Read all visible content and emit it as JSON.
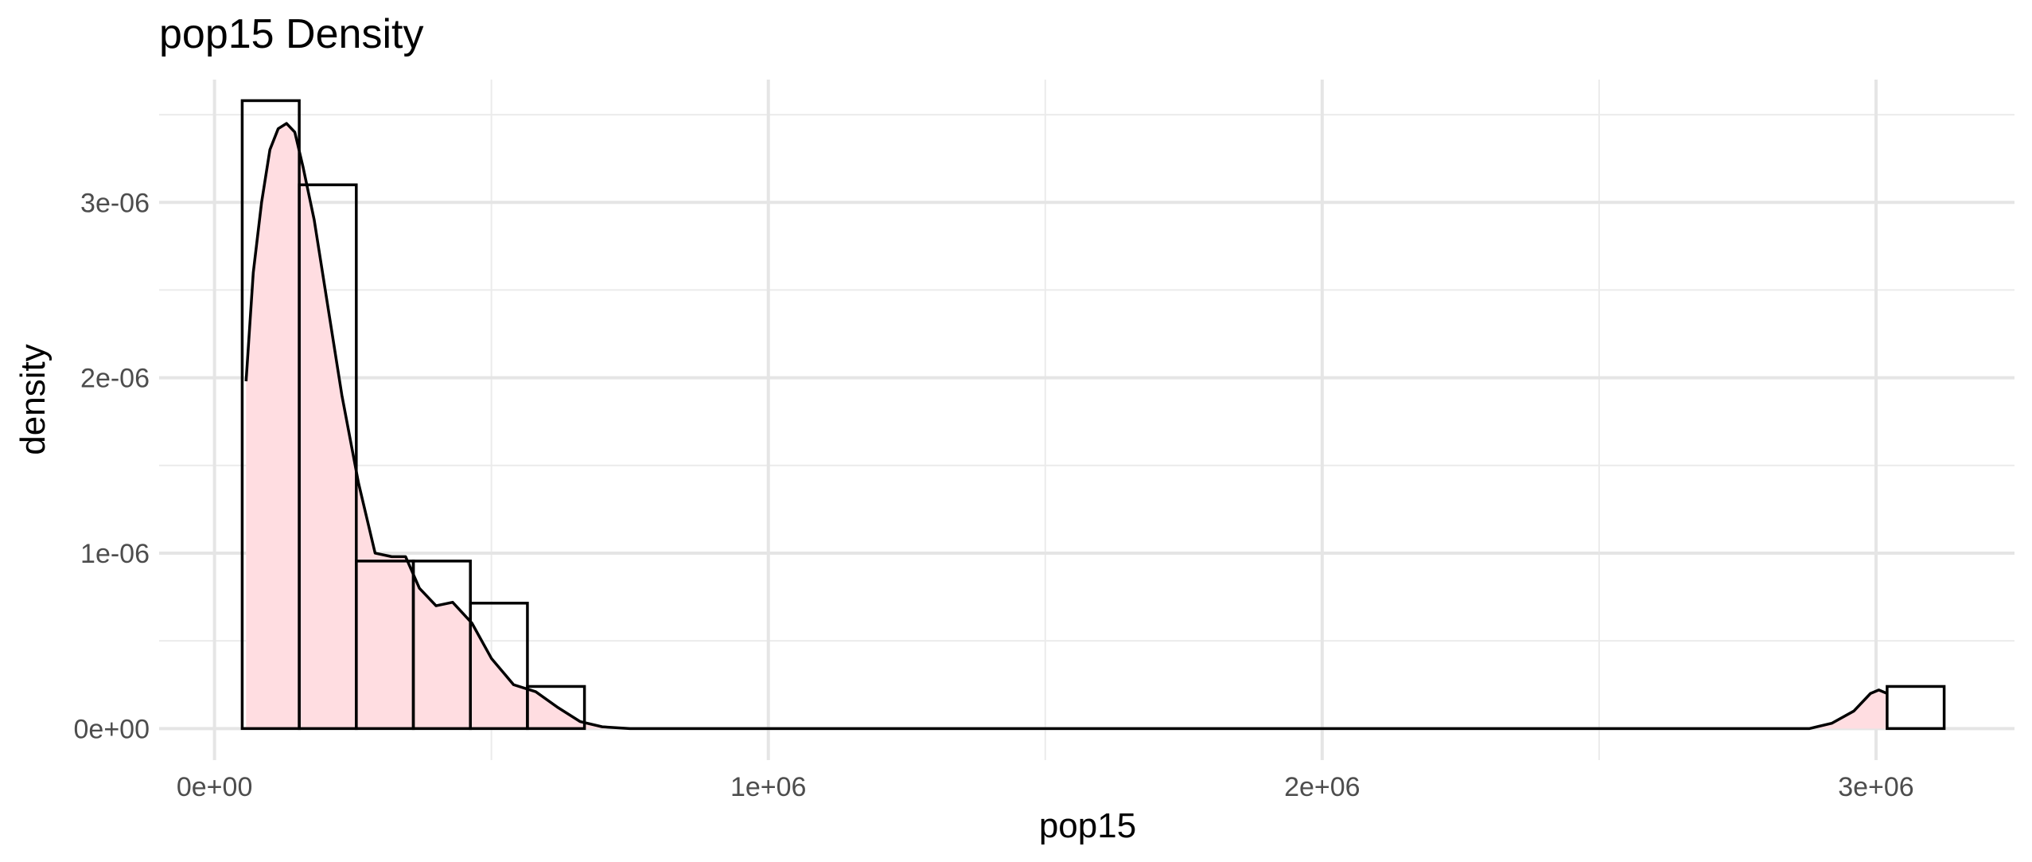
{
  "chart_data": {
    "type": "histogram",
    "title": "pop15 Density",
    "xlabel": "pop15",
    "ylabel": "density",
    "xlim": [
      -100000,
      3250000
    ],
    "ylim": [
      -1.8e-07,
      3.7e-06
    ],
    "x_ticks": [
      0,
      1000000,
      2000000,
      3000000
    ],
    "x_tick_labels": [
      "0e+00",
      "1e+06",
      "2e+06",
      "3e+06"
    ],
    "y_ticks": [
      0,
      1e-06,
      2e-06,
      3e-06
    ],
    "y_tick_labels": [
      "0e+00",
      "1e-06",
      "2e-06",
      "3e-06"
    ],
    "grid": true,
    "bars": [
      {
        "x0": 50000,
        "x1": 153000,
        "density": 3.58e-06
      },
      {
        "x0": 153000,
        "x1": 256000,
        "density": 3.1e-06
      },
      {
        "x0": 256000,
        "x1": 359000,
        "density": 9.55e-07
      },
      {
        "x0": 359000,
        "x1": 462000,
        "density": 9.55e-07
      },
      {
        "x0": 462000,
        "x1": 565000,
        "density": 7.15e-07
      },
      {
        "x0": 565000,
        "x1": 668000,
        "density": 2.4e-07
      },
      {
        "x0": 3020000,
        "x1": 3123000,
        "density": 2.4e-07
      }
    ],
    "density_curve": {
      "fill": "#ffdde1",
      "points": [
        [
          57000,
          1.98e-06
        ],
        [
          70000,
          2.6e-06
        ],
        [
          85000,
          3e-06
        ],
        [
          100000,
          3.3e-06
        ],
        [
          115000,
          3.42e-06
        ],
        [
          130000,
          3.45e-06
        ],
        [
          145000,
          3.4e-06
        ],
        [
          160000,
          3.2e-06
        ],
        [
          180000,
          2.9e-06
        ],
        [
          200000,
          2.5e-06
        ],
        [
          230000,
          1.9e-06
        ],
        [
          260000,
          1.4e-06
        ],
        [
          290000,
          1e-06
        ],
        [
          320000,
          9.8e-07
        ],
        [
          345000,
          9.8e-07
        ],
        [
          370000,
          8e-07
        ],
        [
          400000,
          7e-07
        ],
        [
          430000,
          7.2e-07
        ],
        [
          465000,
          6e-07
        ],
        [
          500000,
          4e-07
        ],
        [
          540000,
          2.5e-07
        ],
        [
          580000,
          2.1e-07
        ],
        [
          620000,
          1.2e-07
        ],
        [
          660000,
          4e-08
        ],
        [
          700000,
          1e-08
        ],
        [
          750000,
          0.0
        ],
        [
          2880000,
          0.0
        ],
        [
          2920000,
          3e-08
        ],
        [
          2960000,
          1e-07
        ],
        [
          2990000,
          2e-07
        ],
        [
          3005000,
          2.2e-07
        ],
        [
          3020000,
          2e-07
        ]
      ]
    }
  }
}
